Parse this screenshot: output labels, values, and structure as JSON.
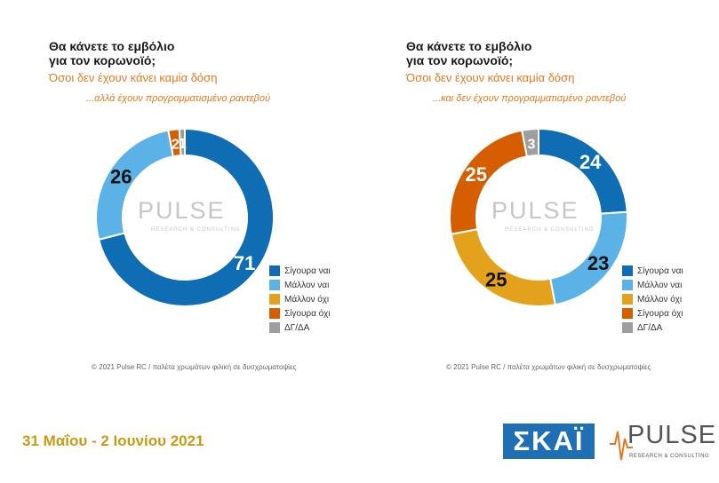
{
  "panels": [
    {
      "title_line1": "Θα κάνετε το εμβόλιο",
      "title_line2": "για τον κορωνοϊό;",
      "subtitle": "Όσοι δεν έχουν κάνει καμία δόση",
      "note": "...αλλά έχουν προγραμματισμένο ραντεβού",
      "credit": "© 2021 Pulse RC  /  παλέτα χρωμάτων φιλική σε δυσχρωματοψίες",
      "watermark": "PULSE",
      "watermark_sub": "RESEARCH & CONSULTING"
    },
    {
      "title_line1": "Θα κάνετε το εμβόλιο",
      "title_line2": "για τον κορωνοϊό;",
      "subtitle": "Όσοι δεν έχουν κάνει καμία δόση",
      "note": "...και δεν έχουν προγραμματισμένο ραντεβού",
      "credit": "© 2021 Pulse RC  /  παλέτα χρωμάτων φιλική σε δυσχρωματοψίες",
      "watermark": "PULSE",
      "watermark_sub": "RESEARCH & CONSULTING"
    }
  ],
  "chart_data": [
    {
      "type": "pie",
      "categories": [
        "Σίγουρα ναι",
        "Μάλλον ναι",
        "Μάλλον όχι",
        "Σίγουρα όχι",
        "ΔΓ/ΔΑ"
      ],
      "values": [
        71,
        26,
        0,
        2,
        1
      ],
      "labels": [
        "71",
        "26",
        "",
        "2",
        "1"
      ],
      "colors": [
        "#0f6db3",
        "#5bb2e6",
        "#e4a11b",
        "#d55e00",
        "#9e9e9e"
      ],
      "legend": "right"
    },
    {
      "type": "pie",
      "categories": [
        "Σίγουρα ναι",
        "Μάλλον ναι",
        "Μάλλον όχι",
        "Σίγουρα όχι",
        "ΔΓ/ΔΑ"
      ],
      "values": [
        24,
        23,
        25,
        25,
        3
      ],
      "labels": [
        "24",
        "23",
        "25",
        "25",
        "3"
      ],
      "colors": [
        "#0f6db3",
        "#5bb2e6",
        "#e4a11b",
        "#d55e00",
        "#9e9e9e"
      ],
      "legend": "right"
    }
  ],
  "footer": {
    "date": "31 Μαΐου - 2 Ιουνίου 2021",
    "skai_logo": "ΣΚΑΪ",
    "pulse_logo": "PULSE",
    "pulse_sub": "RESEARCH & CONSULTING"
  }
}
